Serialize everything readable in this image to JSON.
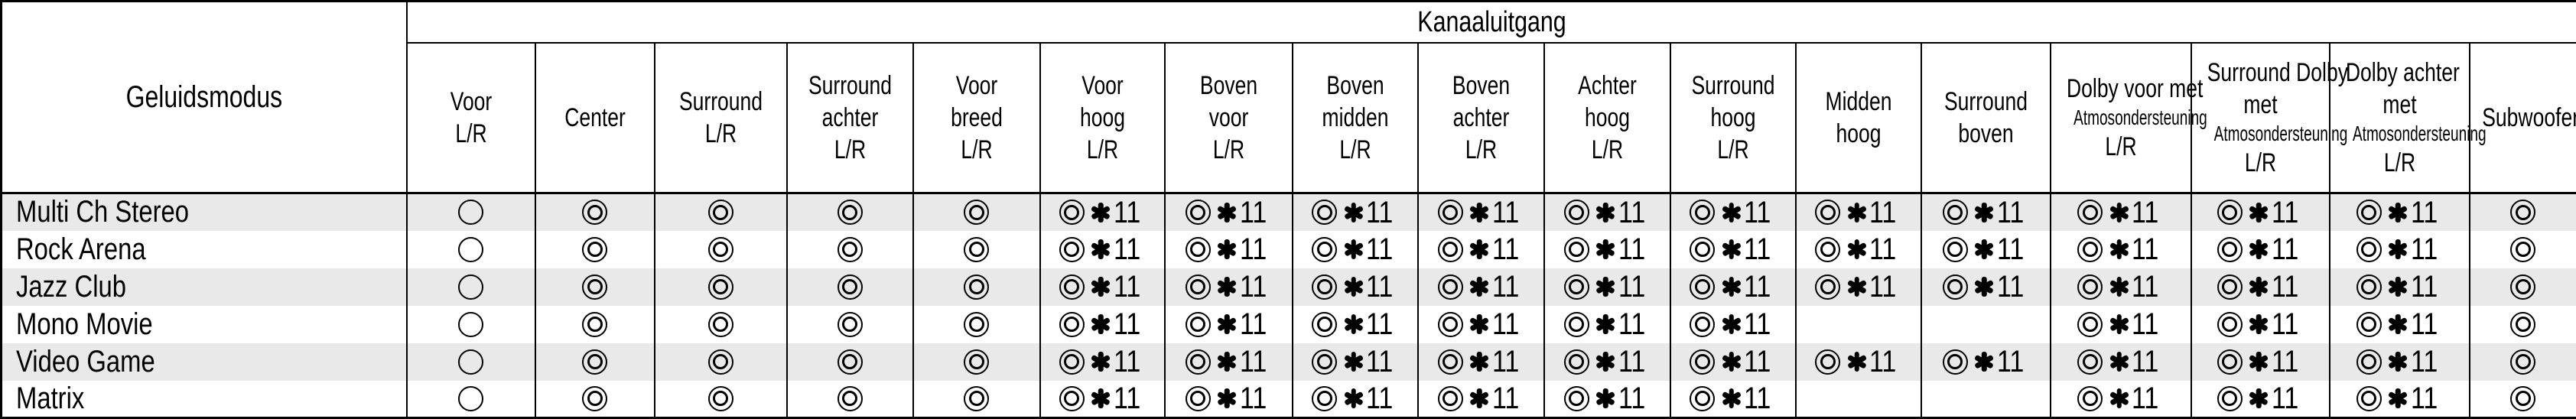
{
  "table": {
    "corner_header": "Geluidsmodus",
    "group_header": "Kanaaluitgang",
    "footnote_marker": "11",
    "symbols": {
      "single_circle": "○",
      "double_circle": "◎",
      "asterisk": "✱"
    },
    "legend": {
      "o": "single circle",
      "d": "double circle",
      "d11": "double circle with footnote asterisk 11",
      "": "no output"
    },
    "columns": [
      {
        "id": "voor-lr",
        "lines": [
          "Voor",
          "L/R"
        ]
      },
      {
        "id": "center",
        "lines": [
          "Center"
        ]
      },
      {
        "id": "surround-lr",
        "lines": [
          "Surround",
          "L/R"
        ]
      },
      {
        "id": "surround-achter-lr",
        "lines": [
          "Surround",
          "achter",
          "L/R"
        ]
      },
      {
        "id": "voor-breed-lr",
        "lines": [
          "Voor",
          "breed",
          "L/R"
        ]
      },
      {
        "id": "voor-hoog-lr",
        "lines": [
          "Voor",
          "hoog",
          "L/R"
        ]
      },
      {
        "id": "boven-voor-lr",
        "lines": [
          "Boven",
          "voor",
          "L/R"
        ]
      },
      {
        "id": "boven-midden-lr",
        "lines": [
          "Boven",
          "midden",
          "L/R"
        ]
      },
      {
        "id": "boven-achter-lr",
        "lines": [
          "Boven",
          "achter",
          "L/R"
        ]
      },
      {
        "id": "achter-hoog-lr",
        "lines": [
          "Achter",
          "hoog",
          "L/R"
        ]
      },
      {
        "id": "surround-hoog-lr",
        "lines": [
          "Surround",
          "hoog",
          "L/R"
        ]
      },
      {
        "id": "midden-hoog",
        "lines": [
          "Midden",
          "hoog"
        ]
      },
      {
        "id": "surround-boven",
        "lines": [
          "Surround",
          "boven"
        ]
      },
      {
        "id": "dolby-voor-atmos-lr",
        "lines": [
          "Dolby voor met",
          {
            "text": "Atmosondersteuning",
            "small": true
          },
          "L/R"
        ]
      },
      {
        "id": "surround-dolby-atmos-lr",
        "lines": [
          "Surround Dolby",
          "met",
          {
            "text": "Atmosondersteuning",
            "small": true
          },
          "L/R"
        ]
      },
      {
        "id": "dolby-achter-atmos-lr",
        "lines": [
          "Dolby achter",
          "met",
          {
            "text": "Atmosondersteuning",
            "small": true
          },
          "L/R"
        ]
      },
      {
        "id": "subwoofer",
        "lines": [
          "Subwoofer"
        ]
      }
    ],
    "rows": [
      {
        "label": "Multi Ch Stereo",
        "cells": [
          "o",
          "d",
          "d",
          "d",
          "d",
          "d11",
          "d11",
          "d11",
          "d11",
          "d11",
          "d11",
          "d11",
          "d11",
          "d11",
          "d11",
          "d11",
          "d"
        ]
      },
      {
        "label": "Rock Arena",
        "cells": [
          "o",
          "d",
          "d",
          "d",
          "d",
          "d11",
          "d11",
          "d11",
          "d11",
          "d11",
          "d11",
          "d11",
          "d11",
          "d11",
          "d11",
          "d11",
          "d"
        ]
      },
      {
        "label": "Jazz Club",
        "cells": [
          "o",
          "d",
          "d",
          "d",
          "d",
          "d11",
          "d11",
          "d11",
          "d11",
          "d11",
          "d11",
          "d11",
          "d11",
          "d11",
          "d11",
          "d11",
          "d"
        ]
      },
      {
        "label": "Mono Movie",
        "cells": [
          "o",
          "d",
          "d",
          "d",
          "d",
          "d11",
          "d11",
          "d11",
          "d11",
          "d11",
          "d11",
          "",
          "",
          "d11",
          "d11",
          "d11",
          "d"
        ]
      },
      {
        "label": "Video Game",
        "cells": [
          "o",
          "d",
          "d",
          "d",
          "d",
          "d11",
          "d11",
          "d11",
          "d11",
          "d11",
          "d11",
          "d11",
          "d11",
          "d11",
          "d11",
          "d11",
          "d"
        ]
      },
      {
        "label": "Matrix",
        "cells": [
          "o",
          "d",
          "d",
          "d",
          "d",
          "d11",
          "d11",
          "d11",
          "d11",
          "d11",
          "d11",
          "",
          "",
          "d11",
          "d11",
          "d11",
          "d"
        ]
      }
    ]
  },
  "colors": {
    "row_stripe": "#e9e9e9",
    "border": "#000000",
    "background": "#ffffff"
  }
}
